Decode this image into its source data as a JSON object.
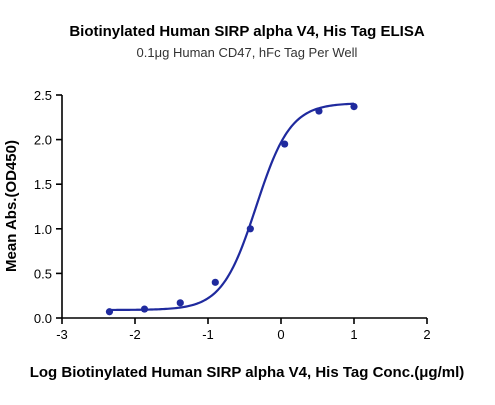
{
  "chart_data": {
    "type": "scatter",
    "title": "Biotinylated Human SIRP alpha V4, His Tag ELISA",
    "subtitle": "0.1μg Human CD47, hFc Tag Per Well",
    "xlabel": "Log Biotinylated Human SIRP alpha V4, His Tag Conc.(μg/ml)",
    "ylabel": "Mean Abs.(OD450)",
    "xlim": [
      -3,
      2
    ],
    "ylim": [
      0,
      2.5
    ],
    "x_ticks": [
      -3,
      -2,
      -1,
      0,
      1,
      2
    ],
    "y_ticks": [
      0.0,
      0.5,
      1.0,
      1.5,
      2.0,
      2.5
    ],
    "x_tick_labels": [
      "-3",
      "-2",
      "-1",
      "0",
      "1",
      "2"
    ],
    "y_tick_labels": [
      "0.0",
      "0.5",
      "1.0",
      "1.5",
      "2.0",
      "2.5"
    ],
    "grid": false,
    "legend": "none",
    "color": "#1f2a9e",
    "series": [
      {
        "x": [
          -2.35,
          -1.87,
          -1.38,
          -0.9,
          -0.42,
          0.05,
          0.52,
          1.0
        ],
        "y": [
          0.07,
          0.1,
          0.17,
          0.4,
          1.0,
          1.95,
          2.32,
          2.37
        ]
      }
    ],
    "fit_curve": {
      "model": "4PL",
      "bottom": 0.09,
      "top": 2.41,
      "ec50_log": -0.34,
      "hill": 1.85,
      "x_range": [
        -2.35,
        1.0
      ]
    }
  }
}
